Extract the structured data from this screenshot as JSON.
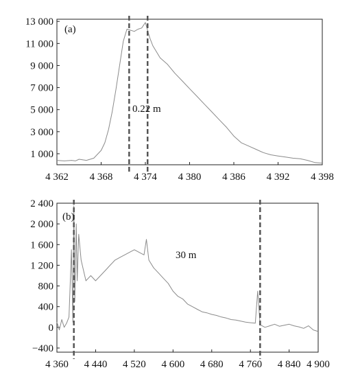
{
  "chart_data": [
    {
      "type": "line",
      "panel_label": "(a)",
      "xlim": [
        4362,
        4398
      ],
      "ylim": [
        0,
        13200
      ],
      "x_ticks": [
        4362,
        4368,
        4374,
        4380,
        4386,
        4392,
        4398
      ],
      "x_tick_labels": [
        "4 362",
        "4 368",
        "4 374",
        "4 380",
        "4 386",
        "4 392",
        "4 398"
      ],
      "y_ticks": [
        1000,
        3000,
        5000,
        7000,
        9000,
        11000,
        13000
      ],
      "y_tick_labels": [
        "1 000",
        "3 000",
        "5 000",
        "7 000",
        "9 000",
        "11 000",
        "13 000"
      ],
      "series": [
        {
          "x": [
            4362,
            4363,
            4364,
            4364.5,
            4365,
            4366,
            4366.5,
            4367,
            4368,
            4368.5,
            4369,
            4369.5,
            4370,
            4370.5,
            4371,
            4371.5,
            4372,
            4372.5,
            4373,
            4373.5,
            4374,
            4374.3,
            4374.6,
            4375,
            4376,
            4377,
            4378,
            4379,
            4380,
            4381,
            4382,
            4383,
            4384,
            4385,
            4386,
            4387,
            4388,
            4389,
            4390,
            4391,
            4392,
            4393,
            4394,
            4395,
            4396,
            4397,
            4398
          ],
          "y": [
            400,
            350,
            400,
            350,
            500,
            400,
            500,
            600,
            1300,
            2000,
            3200,
            4800,
            6800,
            9000,
            11200,
            12300,
            12200,
            12100,
            12300,
            12400,
            12900,
            12200,
            11500,
            10800,
            9700,
            9100,
            8300,
            7600,
            6900,
            6200,
            5500,
            4800,
            4100,
            3400,
            2600,
            2000,
            1700,
            1400,
            1100,
            900,
            800,
            700,
            600,
            550,
            400,
            200,
            150
          ]
        }
      ],
      "vlines": [
        4371.8,
        4374.3
      ],
      "annotation": "0.22 m"
    },
    {
      "type": "line",
      "panel_label": "(b)",
      "xlim": [
        4360,
        4900
      ],
      "ylim": [
        -480,
        2400
      ],
      "x_ticks": [
        4360,
        4440,
        4520,
        4600,
        4680,
        4760,
        4840,
        4900
      ],
      "x_tick_labels": [
        "4 360",
        "4 440",
        "4 520",
        "4 600",
        "4 680",
        "4 760",
        "4 840",
        "4 900"
      ],
      "y_ticks": [
        -400,
        0,
        400,
        800,
        1200,
        1600,
        2000,
        2400
      ],
      "y_tick_labels": [
        "−400",
        "0",
        "400",
        "800",
        "1 200",
        "1 600",
        "2 000",
        "2 400"
      ],
      "series": [
        {
          "x": [
            4360,
            4365,
            4370,
            4375,
            4380,
            4385,
            4390,
            4393,
            4395,
            4397,
            4400,
            4402,
            4405,
            4410,
            4415,
            4420,
            4430,
            4440,
            4450,
            4460,
            4470,
            4480,
            4490,
            4500,
            4510,
            4520,
            4530,
            4540,
            4545,
            4550,
            4560,
            4570,
            4580,
            4590,
            4600,
            4610,
            4620,
            4630,
            4640,
            4650,
            4660,
            4670,
            4680,
            4690,
            4700,
            4710,
            4720,
            4730,
            4740,
            4750,
            4760,
            4770,
            4775,
            4780,
            4790,
            4800,
            4810,
            4820,
            4830,
            4840,
            4850,
            4860,
            4870,
            4880,
            4890,
            4900
          ],
          "y": [
            100,
            -50,
            150,
            0,
            80,
            200,
            1500,
            100,
            2350,
            500,
            2000,
            900,
            1800,
            1300,
            1100,
            900,
            1000,
            900,
            1000,
            1100,
            1200,
            1300,
            1350,
            1400,
            1450,
            1500,
            1450,
            1400,
            1700,
            1300,
            1150,
            1050,
            950,
            850,
            700,
            600,
            550,
            450,
            400,
            350,
            300,
            280,
            250,
            230,
            200,
            180,
            150,
            140,
            120,
            100,
            90,
            80,
            700,
            50,
            0,
            30,
            60,
            20,
            40,
            60,
            30,
            10,
            -20,
            30,
            -50,
            -80
          ]
        }
      ],
      "vlines": [
        4395,
        4780
      ],
      "annotation": "30 m"
    }
  ]
}
